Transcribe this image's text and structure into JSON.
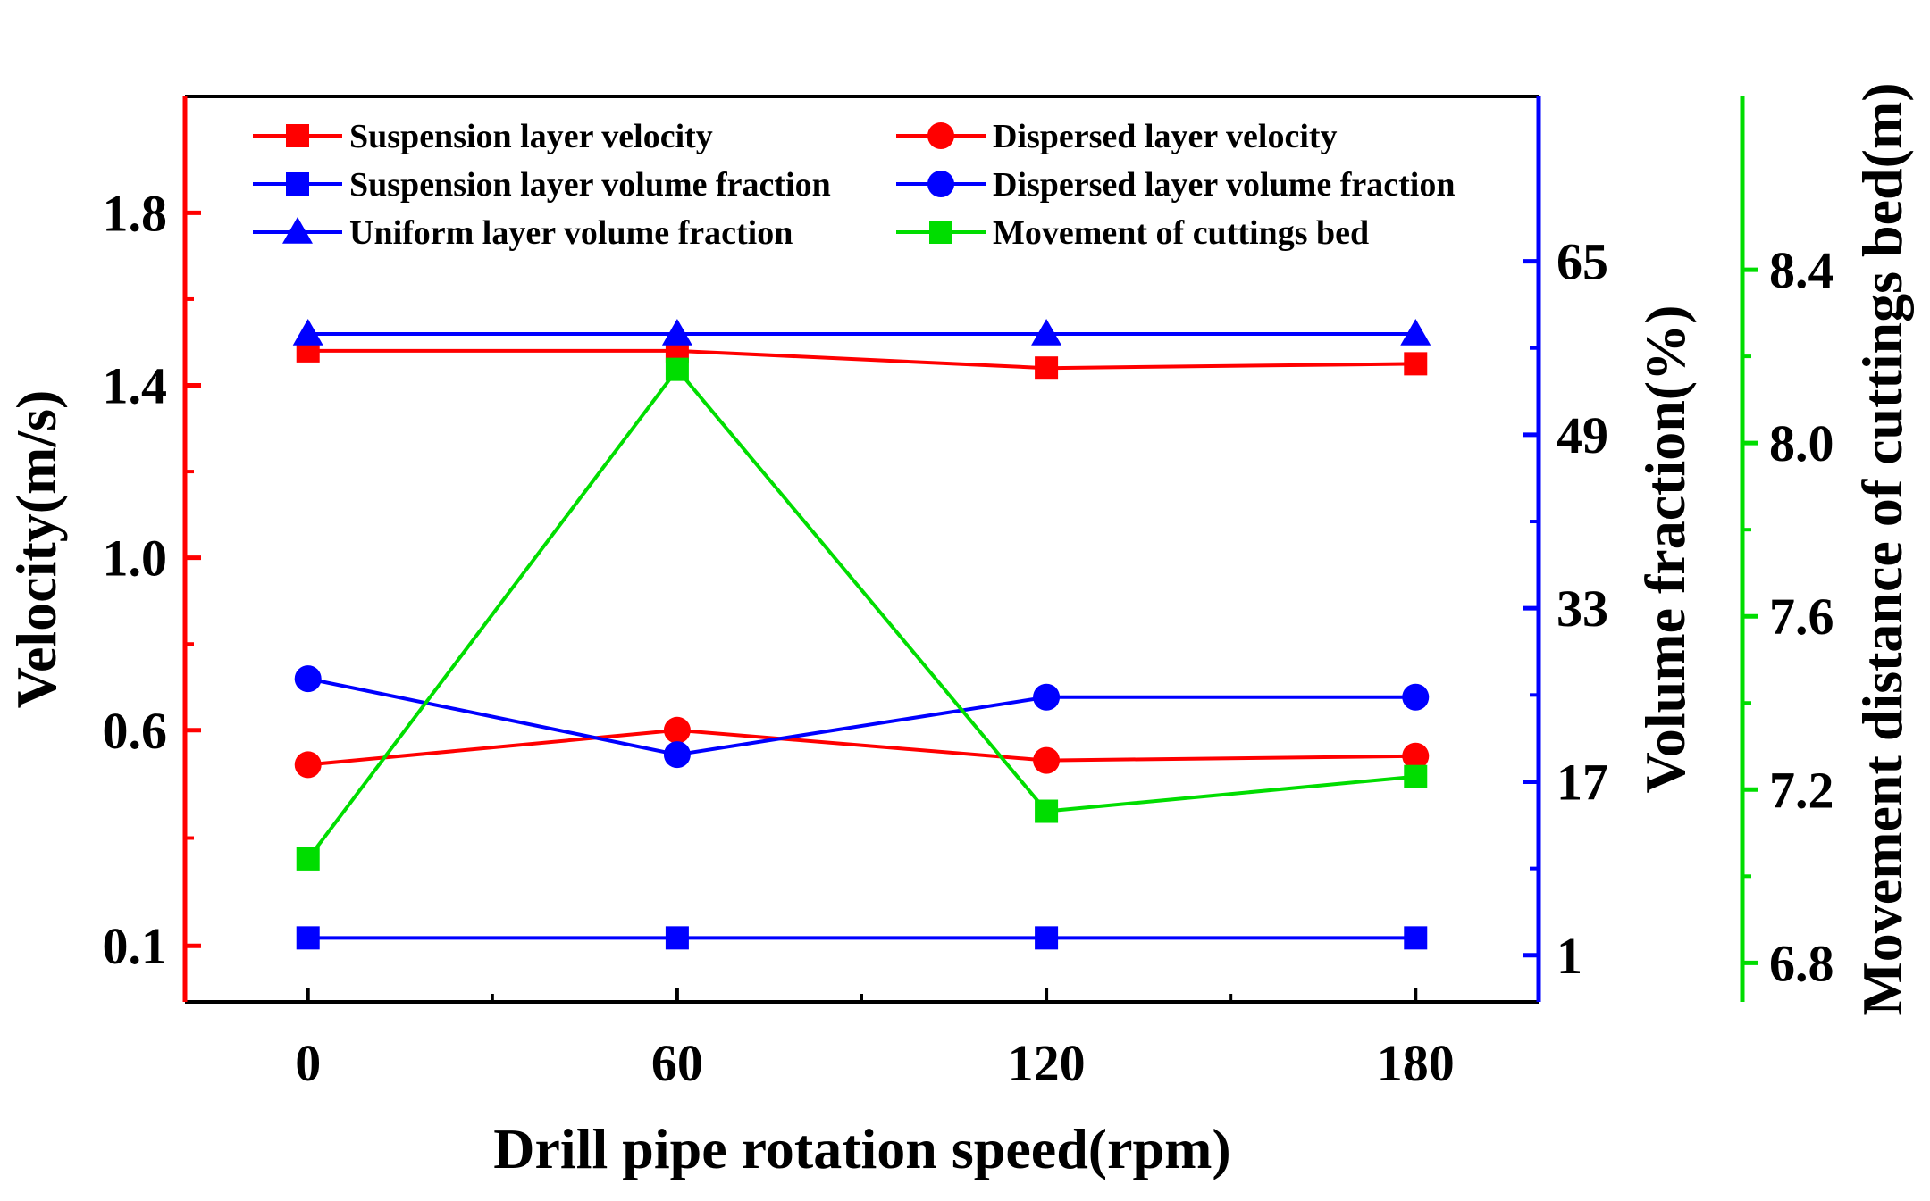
{
  "chart_data": {
    "type": "line",
    "x": [
      0,
      60,
      120,
      180
    ],
    "xlabel": "Drill pipe rotation speed(rpm)",
    "xlim": [
      -20,
      200
    ],
    "xticks": [
      "0",
      "60",
      "120",
      "180"
    ],
    "y_axes": [
      {
        "id": "velocity",
        "label": "Velocity(m/s)",
        "side": "left",
        "color": "#ff0000",
        "ylim": [
          -0.03,
          2.07
        ],
        "ticks": [
          "0.1",
          "0.6",
          "1.0",
          "1.4",
          "1.8"
        ]
      },
      {
        "id": "volume",
        "label": "Volume fraction(%)",
        "side": "right",
        "color": "#0000ff",
        "ylim": [
          -3.3,
          80.2
        ],
        "ticks": [
          "1",
          "17",
          "33",
          "49",
          "65"
        ]
      },
      {
        "id": "movement",
        "label": "Movement distance of cuttings bed(m)",
        "side": "right-offset",
        "color": "#00dd00",
        "ylim": [
          6.71,
          8.8
        ],
        "ticks": [
          "6.8",
          "7.2",
          "7.6",
          "8.0",
          "8.4"
        ]
      }
    ],
    "series": [
      {
        "name": "Suspension layer velocity",
        "axis": "velocity",
        "color": "#ff0000",
        "marker": "square",
        "values": [
          1.48,
          1.48,
          1.44,
          1.45
        ]
      },
      {
        "name": "Dispersed layer velocity",
        "axis": "velocity",
        "color": "#ff0000",
        "marker": "circle",
        "values": [
          0.52,
          0.6,
          0.53,
          0.54
        ]
      },
      {
        "name": "Suspension layer volume fraction",
        "axis": "volume",
        "color": "#0000ff",
        "marker": "square",
        "values": [
          2.6,
          2.6,
          2.6,
          2.6
        ]
      },
      {
        "name": "Dispersed layer volume fraction",
        "axis": "volume",
        "color": "#0000ff",
        "marker": "circle",
        "values": [
          26.5,
          19.5,
          24.8,
          24.8
        ]
      },
      {
        "name": "Uniform layer volume fraction",
        "axis": "volume",
        "color": "#0000ff",
        "marker": "triangle",
        "values": [
          58.3,
          58.3,
          58.3,
          58.3
        ]
      },
      {
        "name": "Movement of cuttings bed",
        "axis": "movement",
        "color": "#00dd00",
        "marker": "square",
        "values": [
          7.04,
          8.17,
          7.15,
          7.23
        ]
      }
    ],
    "legend": "top-inside, two columns"
  }
}
